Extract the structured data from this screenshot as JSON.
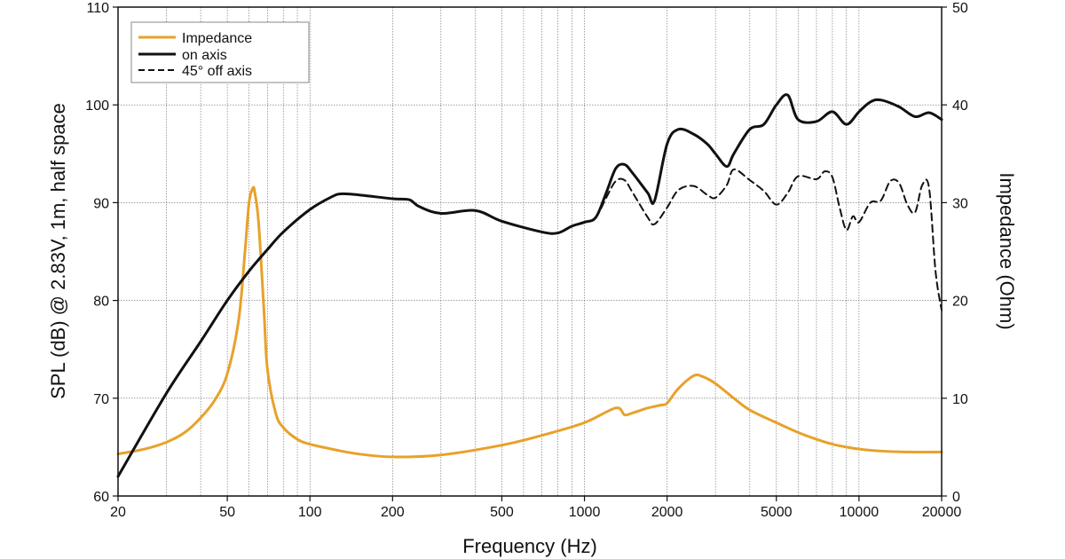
{
  "chart_data": {
    "type": "line",
    "title": "",
    "xlabel": "Frequency (Hz)",
    "ylabel": "SPL (dB) @ 2.83V, 1m, half space",
    "y2label": "Impedance (Ohm)",
    "xscale": "log",
    "xlim": [
      20,
      20000
    ],
    "ylim": [
      60,
      110
    ],
    "y2lim": [
      0,
      50
    ],
    "grid": true,
    "legend_position": "top-left",
    "x_ticks": [
      20,
      50,
      100,
      200,
      500,
      1000,
      2000,
      5000,
      10000,
      20000
    ],
    "x_tick_labels": [
      "20",
      "50",
      "100",
      "200",
      "500",
      "1000",
      "2000",
      "5000",
      "10000",
      "20000"
    ],
    "y_ticks": [
      60,
      70,
      80,
      90,
      100,
      110
    ],
    "y_tick_labels": [
      "60",
      "70",
      "80",
      "90",
      "100",
      "110"
    ],
    "y2_ticks": [
      0,
      10,
      20,
      30,
      40,
      50
    ],
    "y2_tick_labels": [
      "0",
      "10",
      "20",
      "30",
      "40",
      "50"
    ],
    "series": [
      {
        "name": "Impedance",
        "axis": "right",
        "color": "#e8a12a",
        "style": "solid",
        "x": [
          20,
          25,
          30,
          35,
          40,
          45,
          50,
          55,
          58,
          60,
          62,
          63,
          65,
          68,
          70,
          75,
          80,
          90,
          100,
          120,
          150,
          200,
          300,
          500,
          700,
          1000,
          1300,
          1400,
          1500,
          1700,
          1900,
          2000,
          2200,
          2500,
          2700,
          3000,
          3500,
          4000,
          5000,
          6000,
          7000,
          8000,
          9000,
          10000,
          12000,
          15000,
          20000
        ],
        "values": [
          4.3,
          4.8,
          5.5,
          6.5,
          8.0,
          9.8,
          12.5,
          18.0,
          25.0,
          30.0,
          31.5,
          31.0,
          28.0,
          19.0,
          13.0,
          8.5,
          7.0,
          5.8,
          5.3,
          4.8,
          4.3,
          4.0,
          4.2,
          5.2,
          6.2,
          7.5,
          9.0,
          8.3,
          8.5,
          9.0,
          9.3,
          9.5,
          11.0,
          12.3,
          12.2,
          11.5,
          10.0,
          8.8,
          7.5,
          6.5,
          5.8,
          5.3,
          5.0,
          4.8,
          4.6,
          4.5,
          4.5
        ]
      },
      {
        "name": "on axis",
        "axis": "left",
        "color": "#111111",
        "style": "solid",
        "x": [
          20,
          30,
          40,
          50,
          60,
          70,
          80,
          100,
          120,
          130,
          150,
          200,
          230,
          250,
          300,
          400,
          500,
          700,
          800,
          900,
          1000,
          1100,
          1200,
          1300,
          1400,
          1500,
          1700,
          1800,
          2000,
          2200,
          2500,
          2800,
          3000,
          3300,
          3500,
          4000,
          4500,
          5000,
          5500,
          6000,
          7000,
          8000,
          9000,
          10000,
          11000,
          12000,
          14000,
          16000,
          18000,
          20000
        ],
        "values": [
          62.0,
          70.5,
          75.8,
          80.0,
          83.0,
          85.2,
          87.0,
          89.3,
          90.6,
          90.9,
          90.8,
          90.4,
          90.3,
          89.6,
          88.9,
          89.2,
          88.1,
          87.0,
          86.9,
          87.6,
          88.0,
          88.5,
          91.0,
          93.5,
          93.9,
          93.0,
          91.0,
          90.2,
          96.0,
          97.5,
          97.0,
          96.0,
          95.0,
          93.7,
          95.0,
          97.5,
          98.0,
          100.0,
          101.0,
          98.5,
          98.3,
          99.3,
          98.0,
          99.3,
          100.3,
          100.5,
          99.8,
          98.8,
          99.2,
          98.5
        ]
      },
      {
        "name": "45° off axis",
        "axis": "left",
        "color": "#111111",
        "style": "dashed",
        "x": [
          1000,
          1100,
          1200,
          1300,
          1400,
          1500,
          1700,
          1800,
          2000,
          2200,
          2500,
          2800,
          3000,
          3300,
          3500,
          4000,
          4500,
          5000,
          5500,
          6000,
          7000,
          7500,
          8000,
          8500,
          9000,
          9500,
          10000,
          11000,
          12000,
          13000,
          14000,
          15000,
          16000,
          17000,
          18000,
          19000,
          20000
        ],
        "values": [
          88.0,
          88.5,
          90.5,
          92.2,
          92.3,
          91.0,
          88.5,
          87.8,
          89.5,
          91.3,
          91.7,
          90.8,
          90.5,
          91.8,
          93.4,
          92.3,
          91.2,
          89.8,
          91.0,
          92.7,
          92.4,
          93.2,
          92.6,
          89.5,
          87.2,
          88.6,
          88.0,
          90.0,
          90.2,
          92.2,
          92.0,
          89.8,
          89.0,
          91.8,
          91.5,
          83.0,
          79.0
        ]
      }
    ]
  }
}
